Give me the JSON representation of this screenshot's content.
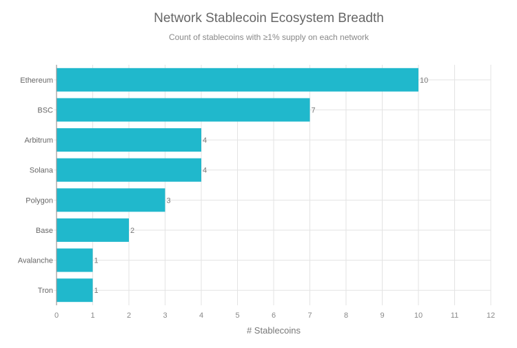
{
  "chart_data": {
    "type": "bar",
    "orientation": "horizontal",
    "title": "Network Stablecoin Ecosystem Breadth",
    "subtitle": "Count of stablecoins with ≥1% supply on each network",
    "xlabel": "# Stablecoins",
    "ylabel": "",
    "xlim": [
      0,
      12
    ],
    "xticks": [
      0,
      1,
      2,
      3,
      4,
      5,
      6,
      7,
      8,
      9,
      10,
      11,
      12
    ],
    "categories": [
      "Ethereum",
      "BSC",
      "Arbitrum",
      "Solana",
      "Polygon",
      "Base",
      "Avalanche",
      "Tron"
    ],
    "values": [
      10,
      7,
      4,
      4,
      3,
      2,
      1,
      1
    ],
    "data_labels": true,
    "grid": true,
    "bar_color": "#20b8cc"
  }
}
